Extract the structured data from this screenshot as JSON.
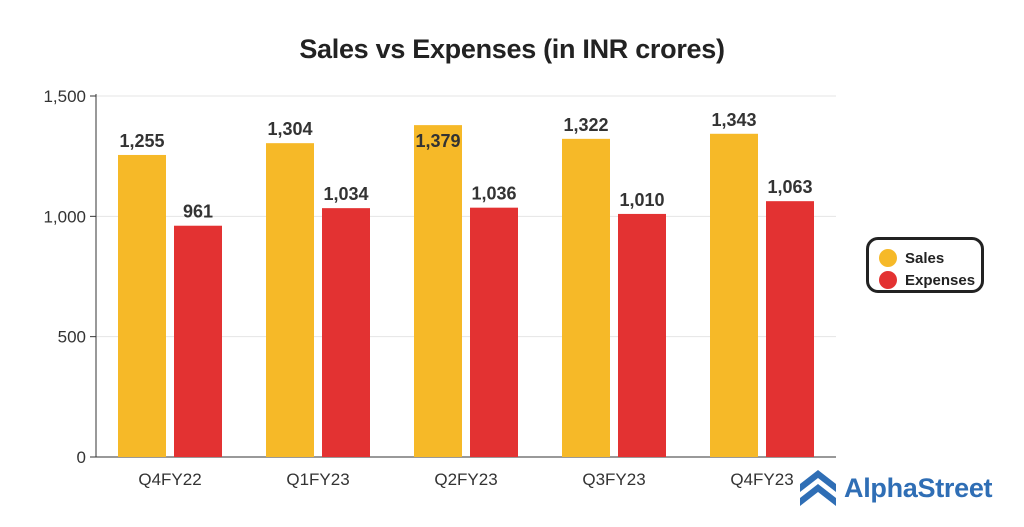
{
  "chart_data": {
    "type": "bar",
    "title": "Sales vs Expenses (in INR crores)",
    "categories": [
      "Q4FY22",
      "Q1FY23",
      "Q2FY23",
      "Q3FY23",
      "Q4FY23"
    ],
    "series": [
      {
        "name": "Sales",
        "color": "#f6b928",
        "values": [
          1255,
          1304,
          1379,
          1322,
          1343
        ],
        "labels": [
          "1,255",
          "1,304",
          "1,379",
          "1,322",
          "1,343"
        ]
      },
      {
        "name": "Expenses",
        "color": "#e33232",
        "values": [
          961,
          1034,
          1036,
          1010,
          1063
        ],
        "labels": [
          "961",
          "1,034",
          "1,036",
          "1,010",
          "1,063"
        ]
      }
    ],
    "yticks": [
      {
        "value": 0,
        "label": "0"
      },
      {
        "value": 500,
        "label": "500"
      },
      {
        "value": 1000,
        "label": "1,000"
      },
      {
        "value": 1500,
        "label": "1,500"
      }
    ],
    "ylim": [
      0,
      1500
    ],
    "xlabel": "",
    "ylabel": "",
    "grid": true,
    "legend_position": "right"
  },
  "brand": {
    "name": "AlphaStreet",
    "icon": "alphastreet-logo-icon",
    "color": "#2f6eb5"
  }
}
